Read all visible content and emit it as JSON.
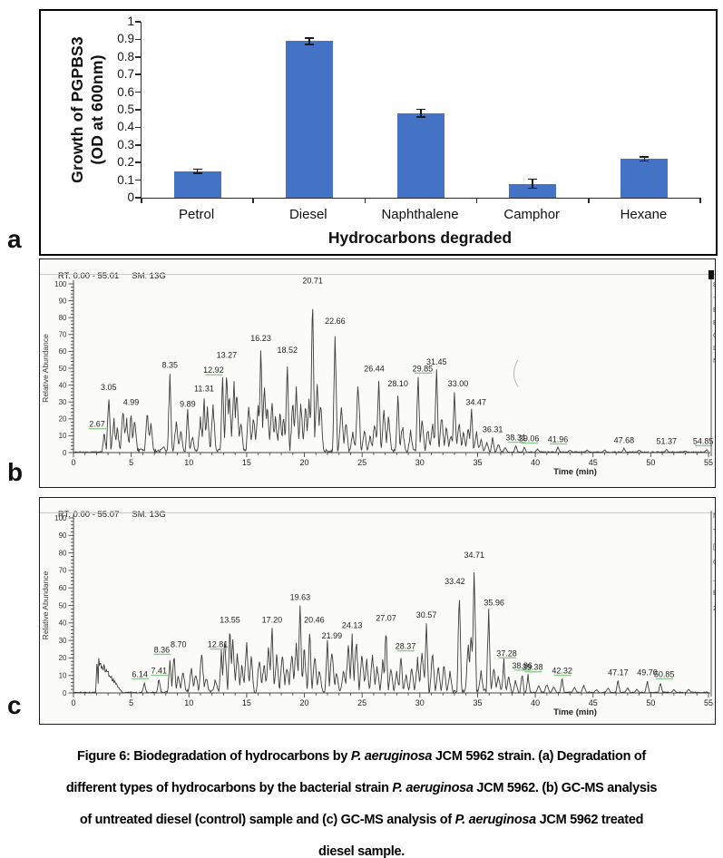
{
  "labels": {
    "a": "a",
    "b": "b",
    "c": "c"
  },
  "chart_data": [
    {
      "type": "bar",
      "name": "hydrocarbon-growth-bar-chart",
      "categories": [
        "Petrol",
        "Diesel",
        "Naphthalene",
        "Camphor",
        "Hexane"
      ],
      "values": [
        0.15,
        0.89,
        0.48,
        0.08,
        0.22
      ],
      "errors": [
        0.012,
        0.018,
        0.022,
        0.025,
        0.012
      ],
      "ylabel_line1": "Growth of PGPBS3",
      "ylabel_line2": "(OD at 600nm)",
      "xlabel": "Hydrocarbons degraded",
      "ylim": [
        0,
        1
      ],
      "yticks": [
        0,
        0.1,
        0.2,
        0.3,
        0.4,
        0.5,
        0.6,
        0.7,
        0.8,
        0.9,
        1
      ],
      "bar_color": "#4472c4",
      "grid": false,
      "legend": "none"
    },
    {
      "type": "line",
      "name": "gcms-untreated-diesel-control",
      "header_rt": "RT: 0.00 - 55.01",
      "header_sm": "SM: 13G",
      "xlabel": "Time (min)",
      "ylabel": "Relative Abundance",
      "xlim": [
        0,
        55
      ],
      "ylim": [
        0,
        100
      ],
      "xticks": [
        0,
        5,
        10,
        15,
        20,
        25,
        30,
        35,
        40,
        45,
        50,
        55
      ],
      "yticks": [
        0,
        10,
        20,
        30,
        40,
        50,
        60,
        70,
        80,
        90,
        100
      ],
      "noise_range": [
        2.6,
        36
      ],
      "corner_mark": true,
      "artifact_arc": true,
      "edge_fragments": [
        "8",
        "-",
        "E",
        "B",
        "C",
        "L",
        "N"
      ],
      "labeled_peaks": [
        {
          "t": 2.67,
          "h": 12,
          "label": "2.67",
          "green": true,
          "dx": -8
        },
        {
          "t": 3.05,
          "h": 34,
          "label": "3.05"
        },
        {
          "t": 4.99,
          "h": 25,
          "label": "4.99"
        },
        {
          "t": 8.35,
          "h": 47,
          "label": "8.35"
        },
        {
          "t": 9.89,
          "h": 24,
          "label": "9.89"
        },
        {
          "t": 11.31,
          "h": 33,
          "label": "11.31"
        },
        {
          "t": 12.92,
          "h": 44,
          "label": "12.92",
          "green": true,
          "dx": -10
        },
        {
          "t": 13.27,
          "h": 52,
          "label": "13.27",
          "dy": -2
        },
        {
          "t": 16.23,
          "h": 63,
          "label": "16.23"
        },
        {
          "t": 18.52,
          "h": 56,
          "label": "18.52"
        },
        {
          "t": 20.71,
          "h": 97,
          "label": "20.71"
        },
        {
          "t": 22.66,
          "h": 73,
          "label": "22.66"
        },
        {
          "t": 26.44,
          "h": 45,
          "label": "26.44",
          "dx": -5
        },
        {
          "t": 28.1,
          "h": 36,
          "label": "28.10"
        },
        {
          "t": 29.85,
          "h": 45,
          "label": "29.85",
          "green": true,
          "dx": 5
        },
        {
          "t": 31.45,
          "h": 49,
          "label": "31.45"
        },
        {
          "t": 33.0,
          "h": 36,
          "label": "33.00",
          "dx": 4
        },
        {
          "t": 34.47,
          "h": 25,
          "label": "34.47",
          "dx": 5
        },
        {
          "t": 36.31,
          "h": 9,
          "label": "36.31"
        },
        {
          "t": 38.31,
          "h": 4,
          "label": "38.31",
          "green": true
        },
        {
          "t": 39.06,
          "h": 3.5,
          "label": "39.06",
          "green": true,
          "dx": 5
        },
        {
          "t": 41.96,
          "h": 3,
          "label": "41.96",
          "green": true
        },
        {
          "t": 47.68,
          "h": 2.5,
          "label": "47.68"
        },
        {
          "t": 51.37,
          "h": 2,
          "label": "51.37"
        },
        {
          "t": 54.85,
          "h": 2,
          "label": "54.85",
          "green": true,
          "dx": -4
        }
      ],
      "minor_peaks": [
        [
          3.5,
          20
        ],
        [
          3.8,
          15
        ],
        [
          4.3,
          24
        ],
        [
          4.6,
          20
        ],
        [
          5.3,
          22
        ],
        [
          6.4,
          22
        ],
        [
          6.7,
          18
        ],
        [
          7.8,
          4
        ],
        [
          8.9,
          18
        ],
        [
          9.3,
          14
        ],
        [
          10.3,
          10
        ],
        [
          11.0,
          20
        ],
        [
          11.6,
          25
        ],
        [
          12.1,
          28
        ],
        [
          13.5,
          35
        ],
        [
          13.9,
          42
        ],
        [
          14.15,
          38
        ],
        [
          14.5,
          20
        ],
        [
          15.2,
          28
        ],
        [
          15.6,
          22
        ],
        [
          16.0,
          30
        ],
        [
          16.55,
          40
        ],
        [
          16.8,
          30
        ],
        [
          17.2,
          28
        ],
        [
          17.5,
          22
        ],
        [
          17.9,
          25
        ],
        [
          18.2,
          20
        ],
        [
          19.0,
          30
        ],
        [
          19.3,
          38
        ],
        [
          19.7,
          30
        ],
        [
          20.1,
          28
        ],
        [
          20.4,
          32
        ],
        [
          21.1,
          42
        ],
        [
          21.4,
          30
        ],
        [
          23.2,
          28
        ],
        [
          23.6,
          18
        ],
        [
          24.2,
          12
        ],
        [
          24.65,
          42
        ],
        [
          25.2,
          14
        ],
        [
          25.7,
          10
        ],
        [
          26.1,
          18
        ],
        [
          26.9,
          25
        ],
        [
          27.3,
          22
        ],
        [
          28.5,
          16
        ],
        [
          29.2,
          12
        ],
        [
          30.2,
          20
        ],
        [
          30.7,
          14
        ],
        [
          31.1,
          18
        ],
        [
          31.9,
          22
        ],
        [
          32.3,
          16
        ],
        [
          32.7,
          12
        ],
        [
          33.4,
          18
        ],
        [
          33.8,
          12
        ],
        [
          34.2,
          16
        ],
        [
          34.9,
          12
        ],
        [
          35.3,
          8
        ],
        [
          35.8,
          6
        ],
        [
          36.8,
          5
        ],
        [
          37.4,
          3
        ],
        [
          40.2,
          2
        ],
        [
          43,
          1.5
        ],
        [
          44.5,
          1.5
        ],
        [
          46,
          1.5
        ],
        [
          49,
          1.5
        ],
        [
          53,
          1
        ]
      ]
    },
    {
      "type": "line",
      "name": "gcms-treated-diesel",
      "header_rt": "RT: 0.00 - 55.07",
      "header_sm": "SM: 13G",
      "xlabel": "Time (min)",
      "ylabel": "Relative Abundance",
      "xlim": [
        0,
        55
      ],
      "ylim": [
        0,
        100
      ],
      "xticks": [
        0,
        5,
        10,
        15,
        20,
        25,
        30,
        35,
        40,
        45,
        50,
        55
      ],
      "yticks": [
        0,
        10,
        20,
        30,
        40,
        50,
        60,
        70,
        80,
        90,
        100
      ],
      "noise_range": [
        8,
        37.5
      ],
      "corner_mark": false,
      "artifact_arc": false,
      "edge_fragments": [
        "NL",
        "TI",
        "[4",
        "G",
        "_E",
        "E",
        "2("
      ],
      "labeled_peaks": [
        {
          "t": 6.14,
          "h": 6,
          "label": "6.14",
          "green": true,
          "dx": -5
        },
        {
          "t": 7.41,
          "h": 8,
          "label": "7.41",
          "green": true
        },
        {
          "t": 8.36,
          "h": 20,
          "label": "8.36",
          "green": true,
          "dx": -9
        },
        {
          "t": 8.7,
          "h": 23,
          "label": "8.70",
          "dx": 5
        },
        {
          "t": 12.81,
          "h": 23,
          "label": "12.81",
          "green": true,
          "dx": -4
        },
        {
          "t": 13.55,
          "h": 37,
          "label": "13.55"
        },
        {
          "t": 17.2,
          "h": 37,
          "label": "17.20"
        },
        {
          "t": 19.63,
          "h": 50,
          "label": "19.63"
        },
        {
          "t": 20.46,
          "h": 37,
          "label": "20.46",
          "dx": 5
        },
        {
          "t": 21.99,
          "h": 29,
          "label": "21.99",
          "dx": 5,
          "dy": 2
        },
        {
          "t": 24.13,
          "h": 34,
          "label": "24.13"
        },
        {
          "t": 27.07,
          "h": 38,
          "label": "27.07"
        },
        {
          "t": 28.37,
          "h": 22,
          "label": "28.37",
          "green": true,
          "dx": 5
        },
        {
          "t": 30.57,
          "h": 40,
          "label": "30.57"
        },
        {
          "t": 33.42,
          "h": 59,
          "label": "33.42",
          "dx": -5
        },
        {
          "t": 34.71,
          "h": 74,
          "label": "34.71"
        },
        {
          "t": 35.96,
          "h": 47,
          "label": "35.96",
          "dx": 6
        },
        {
          "t": 37.28,
          "h": 18,
          "label": "37.28",
          "green": true,
          "dx": 3
        },
        {
          "t": 38.86,
          "h": 11,
          "label": "38.86",
          "green": true
        },
        {
          "t": 39.38,
          "h": 10,
          "label": "39.38",
          "green": true,
          "dx": 5
        },
        {
          "t": 42.32,
          "h": 8,
          "label": "42.32",
          "green": true
        },
        {
          "t": 47.17,
          "h": 7,
          "label": "47.17"
        },
        {
          "t": 49.7,
          "h": 7,
          "label": "49.70"
        },
        {
          "t": 50.85,
          "h": 6,
          "label": "50.85",
          "green": true,
          "dx": 4
        }
      ],
      "minor_peaks": [
        [
          2.05,
          20,
          0.12,
          2.2
        ],
        [
          9.1,
          10
        ],
        [
          9.5,
          13
        ],
        [
          10.2,
          14
        ],
        [
          10.6,
          11
        ],
        [
          11.1,
          24
        ],
        [
          11.5,
          9
        ],
        [
          12.3,
          8
        ],
        [
          13.1,
          30
        ],
        [
          13.8,
          32
        ],
        [
          14.2,
          22
        ],
        [
          14.6,
          16
        ],
        [
          15.0,
          28
        ],
        [
          15.4,
          20
        ],
        [
          16.1,
          21
        ],
        [
          16.5,
          17
        ],
        [
          16.9,
          26
        ],
        [
          17.6,
          21
        ],
        [
          18.1,
          23
        ],
        [
          18.5,
          16
        ],
        [
          18.9,
          24
        ],
        [
          19.3,
          30
        ],
        [
          20.0,
          26
        ],
        [
          20.9,
          21
        ],
        [
          21.3,
          14
        ],
        [
          22.4,
          26
        ],
        [
          22.8,
          12
        ],
        [
          23.4,
          14
        ],
        [
          23.8,
          27
        ],
        [
          24.5,
          30
        ],
        [
          25.0,
          22
        ],
        [
          25.4,
          18
        ],
        [
          25.9,
          23
        ],
        [
          26.3,
          16
        ],
        [
          26.8,
          20
        ],
        [
          27.5,
          14
        ],
        [
          28.0,
          12
        ],
        [
          28.8,
          10
        ],
        [
          29.3,
          14
        ],
        [
          29.8,
          19
        ],
        [
          30.2,
          25
        ],
        [
          31.1,
          22
        ],
        [
          31.6,
          14
        ],
        [
          32.1,
          16
        ],
        [
          32.6,
          12
        ],
        [
          34.2,
          28
        ],
        [
          34.45,
          35
        ],
        [
          35.3,
          12
        ],
        [
          36.4,
          14
        ],
        [
          36.8,
          10
        ],
        [
          37.7,
          9
        ],
        [
          38.3,
          7
        ],
        [
          40.3,
          4
        ],
        [
          41.0,
          5
        ],
        [
          41.6,
          4
        ],
        [
          43.4,
          3
        ],
        [
          44.2,
          4
        ],
        [
          45.3,
          2
        ],
        [
          46.3,
          3
        ],
        [
          48.0,
          3
        ],
        [
          48.8,
          2
        ],
        [
          52.0,
          2
        ],
        [
          53.3,
          2
        ]
      ]
    }
  ],
  "caption": {
    "lines": [
      [
        {
          "t": "Figure 6: Biodegradation of hydrocarbons by "
        },
        {
          "t": "P. aeruginosa",
          "i": true
        },
        {
          "t": " JCM 5962 strain. (a) Degradation of"
        }
      ],
      [
        {
          "t": "different types of hydrocarbons by the bacterial strain "
        },
        {
          "t": "P. aeruginosa",
          "i": true
        },
        {
          "t": " JCM 5962. (b) GC-MS analysis"
        }
      ],
      [
        {
          "t": "of untreated diesel (control) sample and (c) GC-MS analysis of "
        },
        {
          "t": "P. aeruginosa",
          "i": true
        },
        {
          "t": " JCM 5962 treated"
        }
      ],
      [
        {
          "t": "diesel sample."
        }
      ]
    ]
  },
  "colors": {
    "bar_blue": "#4472c4",
    "trace": "#3d3d3d",
    "green_mark": "#8fc98f",
    "axis": "#444444",
    "panel_bg": "#fbfbf9"
  }
}
